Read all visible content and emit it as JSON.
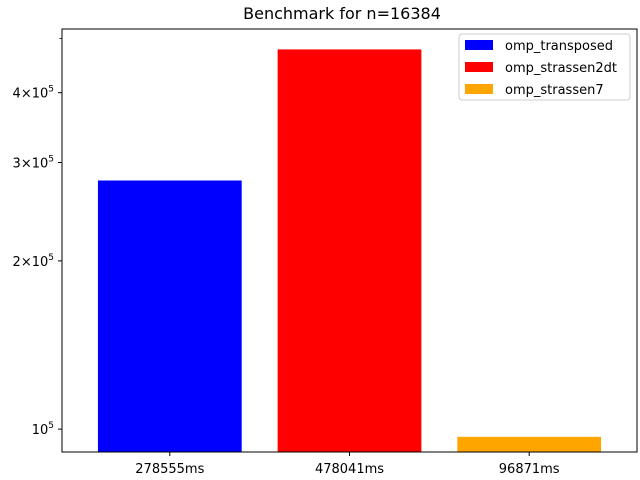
{
  "chart_data": {
    "type": "bar",
    "title": "Benchmark for n=16384",
    "xlabel": "",
    "ylabel": "",
    "y_scale": "log",
    "ylim": [
      91000,
      520000
    ],
    "categories": [
      "278555ms",
      "478041ms",
      "96871ms"
    ],
    "series": [
      {
        "name": "omp_transposed",
        "color": "#0000ff",
        "values": [
          278555,
          null,
          null
        ]
      },
      {
        "name": "omp_strassen2dt",
        "color": "#ff0000",
        "values": [
          null,
          478041,
          null
        ]
      },
      {
        "name": "omp_strassen7",
        "color": "#ffa500",
        "values": [
          null,
          null,
          96871
        ]
      }
    ],
    "y_ticks": [
      {
        "value": 100000,
        "mantissa": "",
        "exponent": "5"
      },
      {
        "value": 200000,
        "mantissa": "2",
        "exponent": "5"
      },
      {
        "value": 300000,
        "mantissa": "3",
        "exponent": "5"
      },
      {
        "value": 400000,
        "mantissa": "4",
        "exponent": "5"
      }
    ],
    "y_minor_ticks": [
      500000
    ],
    "legend_position": "top-right",
    "grid": false
  }
}
